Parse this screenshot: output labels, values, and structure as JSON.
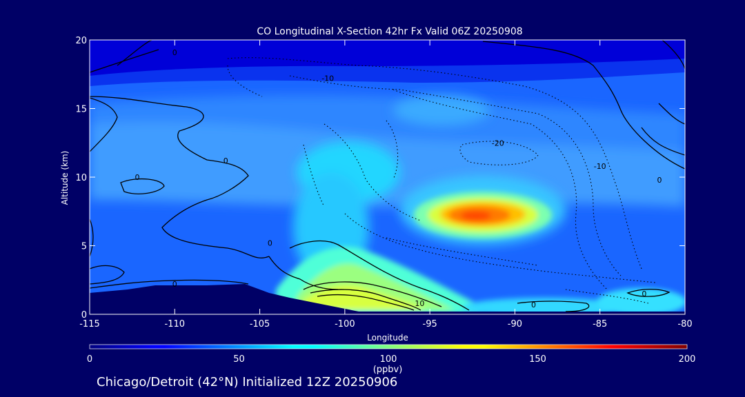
{
  "chart_data": {
    "type": "heatmap",
    "title": "CO Longitudinal X-Section 42hr  Fx Valid 06Z 20250908",
    "xlabel": "Longitude",
    "ylabel": "Altitude (km)",
    "xlim": [
      -115,
      -80
    ],
    "ylim": [
      0,
      20
    ],
    "x_ticks": [
      "-115",
      "-110",
      "-105",
      "-100",
      "-95",
      "-90",
      "-85",
      "-80"
    ],
    "y_ticks": [
      "0",
      "5",
      "10",
      "15",
      "20"
    ],
    "grid": false,
    "colorbar": {
      "range": [
        0,
        200
      ],
      "ticks": [
        "0",
        "50",
        "100",
        "150",
        "200"
      ],
      "unit": "(ppbv)"
    },
    "colors": {
      "background": "#000066",
      "axis": "#ffffff",
      "contour": "#000000",
      "terrain": "#000066"
    },
    "contour_labels": [
      {
        "text": "0",
        "lon": -110.0,
        "alt": 19.1
      },
      {
        "text": "-10",
        "lon": -101.0,
        "alt": 17.2
      },
      {
        "text": "-20",
        "lon": -91.0,
        "alt": 12.5
      },
      {
        "text": "-10",
        "lon": -85.0,
        "alt": 10.8
      },
      {
        "text": "0",
        "lon": -107.0,
        "alt": 11.2
      },
      {
        "text": "0",
        "lon": -112.2,
        "alt": 10.0
      },
      {
        "text": "0",
        "lon": -104.4,
        "alt": 5.2
      },
      {
        "text": "0",
        "lon": -110.0,
        "alt": 2.2
      },
      {
        "text": "10",
        "lon": -95.6,
        "alt": 0.8
      },
      {
        "text": "0",
        "lon": -88.9,
        "alt": 0.7
      },
      {
        "text": "0",
        "lon": -82.4,
        "alt": 1.5
      },
      {
        "text": "0",
        "lon": -81.5,
        "alt": 9.8
      }
    ],
    "co_field": [
      {
        "lon": -115,
        "alt": 18,
        "co": 20
      },
      {
        "lon": -97.5,
        "alt": 18,
        "co": 20
      },
      {
        "lon": -80,
        "alt": 18,
        "co": 15
      },
      {
        "lon": -107.5,
        "alt": 13,
        "co": 40
      },
      {
        "lon": -92.5,
        "alt": 14.8,
        "co": 65
      },
      {
        "lon": -100,
        "alt": 10,
        "co": 70
      },
      {
        "lon": -92.2,
        "alt": 7.3,
        "co": 145
      },
      {
        "lon": -100,
        "alt": 2.5,
        "co": 105
      },
      {
        "lon": -98,
        "alt": 1.3,
        "co": 110
      },
      {
        "lon": -82,
        "alt": 1.2,
        "co": 80
      }
    ]
  },
  "footer": {
    "caption": "Chicago/Detroit (42°N) Initialized 12Z 20250906"
  }
}
